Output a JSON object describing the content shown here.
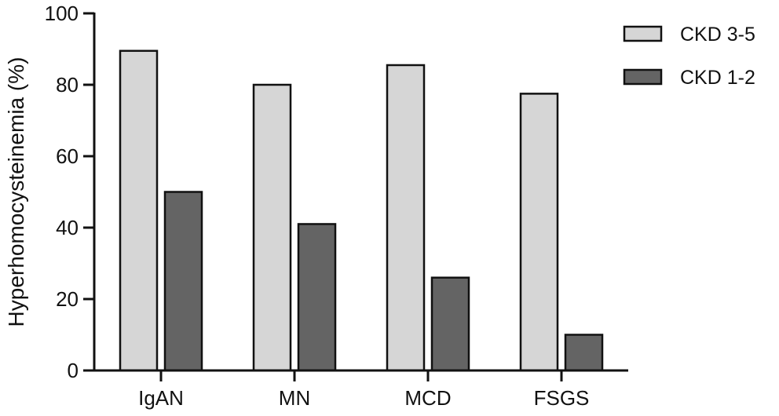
{
  "chart_data": {
    "type": "bar",
    "title": "",
    "xlabel": "",
    "ylabel": "Hyperhomocysteinemia (%)",
    "ylim": [
      0,
      100
    ],
    "yticks": [
      0,
      20,
      40,
      60,
      80,
      100
    ],
    "categories": [
      "IgAN",
      "MN",
      "MCD",
      "FSGS"
    ],
    "series": [
      {
        "name": "CKD 3-5",
        "values": [
          89.5,
          80,
          85.5,
          77.5
        ],
        "color": "#d6d6d6"
      },
      {
        "name": "CKD 1-2",
        "values": [
          50,
          41,
          26,
          10
        ],
        "color": "#646464"
      }
    ],
    "legend_position": "top-right",
    "grid": false
  }
}
